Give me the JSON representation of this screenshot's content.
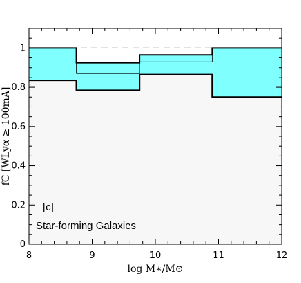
{
  "chart_data": {
    "type": "step",
    "title": "",
    "xlabel": "log M∗/M⊙",
    "ylabel": "fC [WLyα ≥ 100mA]",
    "xlim": [
      8,
      12
    ],
    "ylim": [
      0,
      1.1
    ],
    "x_ticks": [
      "8",
      "9",
      "10",
      "11",
      "12"
    ],
    "y_ticks": [
      "0",
      "0.2",
      "0.4",
      "0.6",
      "0.8",
      "1"
    ],
    "bin_edges": [
      8.0,
      8.75,
      9.75,
      10.9,
      12.0
    ],
    "upper": [
      1.0,
      0.925,
      0.965,
      1.0
    ],
    "median": [
      1.0,
      0.87,
      0.93,
      1.0
    ],
    "lower": [
      0.835,
      0.785,
      0.865,
      0.75
    ],
    "reference_line": 1.0,
    "annotations": [
      "[c]",
      "Star-forming Galaxies"
    ],
    "colors": {
      "band_fill": "#80ffff",
      "below_fill": "#f7f7f7",
      "line": "#000000",
      "reference": "#888888"
    }
  }
}
